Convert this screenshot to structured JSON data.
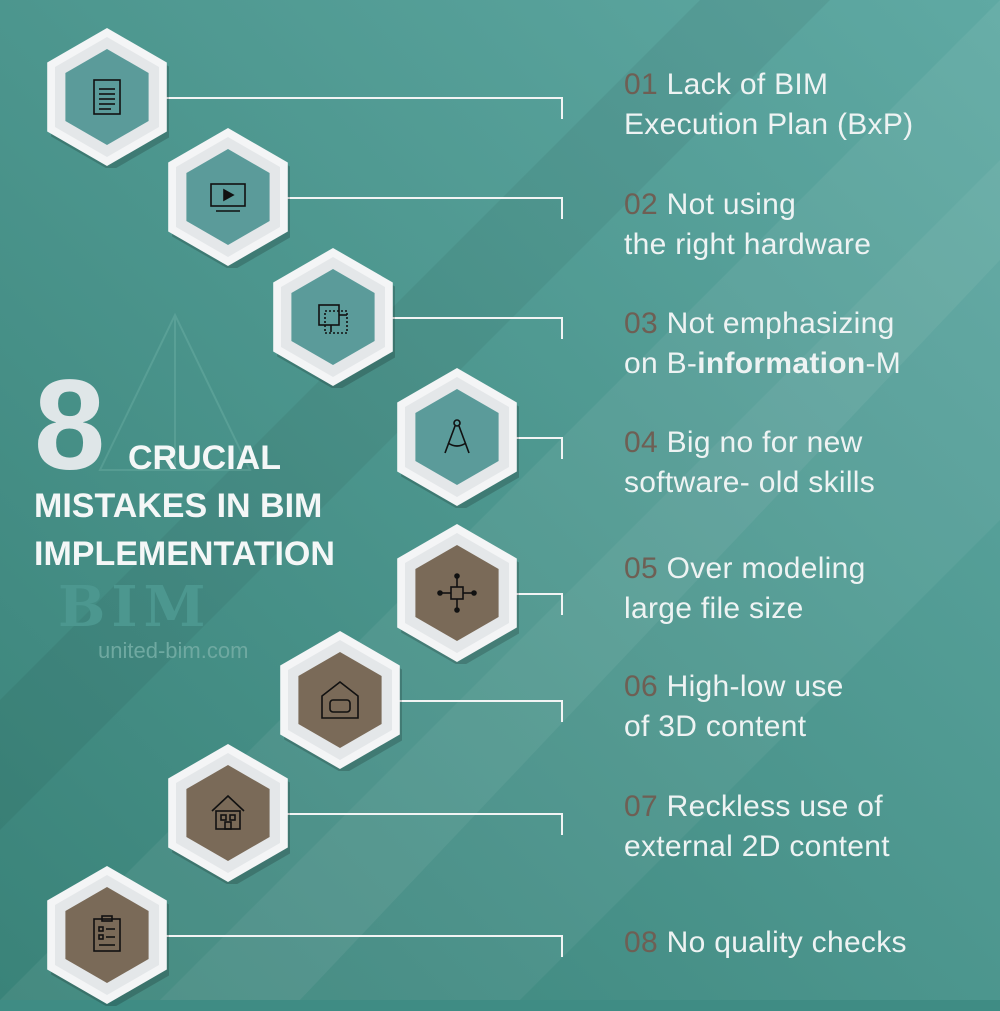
{
  "headline": {
    "number": "8",
    "line1": "CRUCIAL",
    "line2": "MISTAKES IN BIM",
    "line3": "IMPLEMENTATION"
  },
  "watermark": {
    "text": "BIM",
    "url": "united-bim.com"
  },
  "colors": {
    "teal_bg": "#3f8c84",
    "teal_icon": "#5b9b9a",
    "brown_icon": "#7a6a58",
    "number": "#6e5f54"
  },
  "items": [
    {
      "num": "01",
      "line1": "Lack of BIM",
      "line2": "Execution Plan (BxP)",
      "icon": "document-icon"
    },
    {
      "num": "02",
      "line1": "Not using",
      "line2": "the right hardware",
      "icon": "monitor-play-icon"
    },
    {
      "num": "03",
      "line1": "Not emphasizing",
      "line2a": "on B-",
      "line2b": "information",
      "line2c": "-M",
      "icon": "3d-cube-icon"
    },
    {
      "num": "04",
      "line1": "Big no for new",
      "line2": "software- old skills",
      "icon": "compass-icon"
    },
    {
      "num": "05",
      "line1": "Over modeling",
      "line2": "large file size",
      "icon": "network-icon"
    },
    {
      "num": "06",
      "line1": "High-low use",
      "line2": "of 3D content",
      "icon": "armchair-icon"
    },
    {
      "num": "07",
      "line1": "Reckless use of",
      "line2": "external 2D content",
      "icon": "house-icon"
    },
    {
      "num": "08",
      "line1": "No quality checks",
      "icon": "checklist-icon"
    }
  ]
}
